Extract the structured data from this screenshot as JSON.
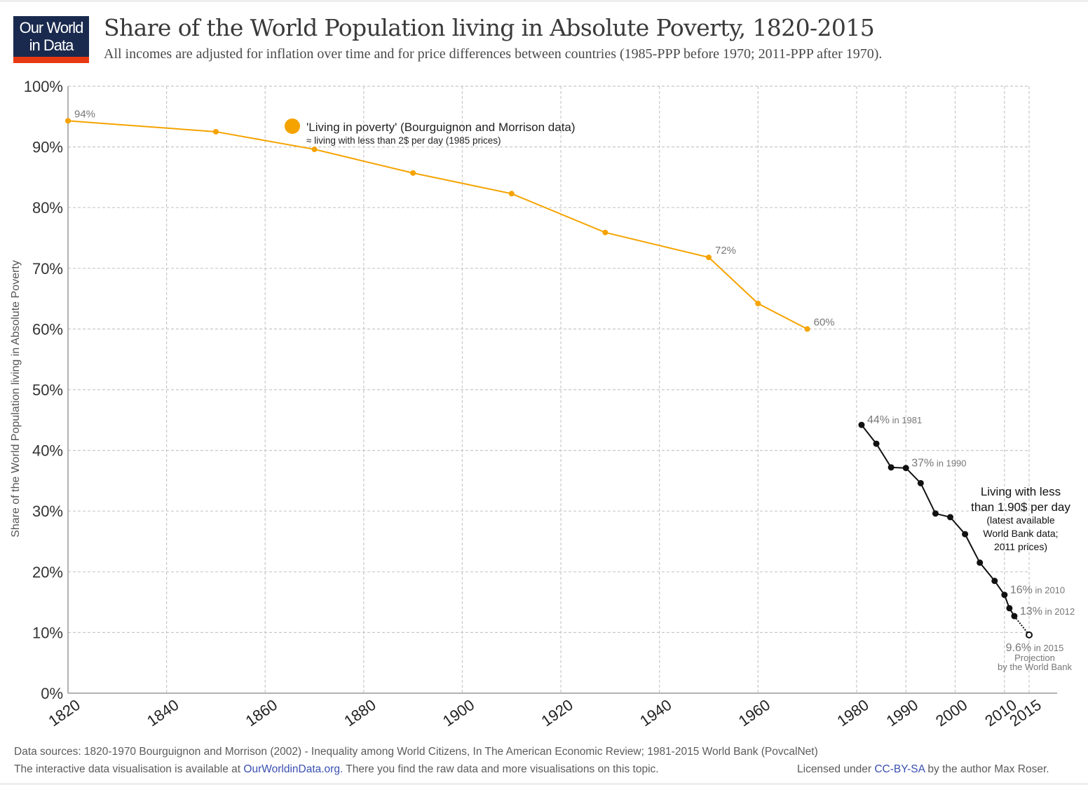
{
  "logo": {
    "line1": "Our World",
    "line2": "in Data"
  },
  "colors": {
    "logo_bg": "#1a2a4e",
    "logo_strip": "#e63912",
    "poverty_orange": "#f5a300",
    "worldbank_black": "#111111",
    "link": "#3a4fb0"
  },
  "chart_data": {
    "type": "line",
    "title": "Share of the World Population living in Absolute Poverty, 1820-2015",
    "subtitle": "All incomes are adjusted for inflation over time and for price differences between countries (1985-PPP before 1970; 2011-PPP after 1970).",
    "xlabel": "",
    "ylabel": "Share of the World Population living in Absolute Poverty",
    "xlim": [
      1820,
      2015
    ],
    "ylim": [
      0,
      100
    ],
    "grid": true,
    "x_ticks": [
      1820,
      1840,
      1860,
      1880,
      1900,
      1920,
      1940,
      1960,
      1980,
      1990,
      2000,
      2010,
      2015
    ],
    "x_tick_labels": [
      "1820",
      "1840",
      "1860",
      "1880",
      "1900",
      "1920",
      "1940",
      "1960",
      "1980",
      "1990",
      "2000",
      "2010",
      "2015"
    ],
    "y_ticks": [
      0,
      10,
      20,
      30,
      40,
      50,
      60,
      70,
      80,
      90,
      100
    ],
    "y_tick_labels": [
      "0%",
      "10%",
      "20%",
      "30%",
      "40%",
      "50%",
      "60%",
      "70%",
      "80%",
      "90%",
      "100%"
    ],
    "series": [
      {
        "name": "'Living in poverty' (Bourguignon and Morrison data)",
        "note": "≈ living with less than 2$ per day (1985 prices)",
        "color": "#f5a300",
        "x": [
          1820,
          1850,
          1870,
          1890,
          1910,
          1929,
          1950,
          1960,
          1970
        ],
        "y": [
          94.3,
          92.5,
          89.6,
          85.7,
          82.3,
          75.9,
          71.8,
          64.2,
          60.0
        ],
        "labels": [
          {
            "x": 1820,
            "y": 94.3,
            "text": "94%"
          },
          {
            "x": 1950,
            "y": 71.8,
            "text": "72%"
          },
          {
            "x": 1970,
            "y": 60.0,
            "text": "60%"
          }
        ]
      },
      {
        "name": "Living with less than 1.90$ per day",
        "note_lines": [
          "Living with less",
          "than 1.90$ per day",
          "(latest available",
          "World Bank data;",
          "2011 prices)"
        ],
        "color": "#111111",
        "x": [
          1981,
          1984,
          1987,
          1990,
          1993,
          1996,
          1999,
          2002,
          2005,
          2008,
          2010,
          2011,
          2012
        ],
        "y": [
          44.2,
          41.1,
          37.2,
          37.1,
          34.6,
          29.6,
          29.0,
          26.2,
          21.5,
          18.5,
          16.2,
          14.0,
          12.7
        ],
        "labels": [
          {
            "x": 1981,
            "y": 44.2,
            "pct": "44%",
            "suffix": " in 1981"
          },
          {
            "x": 1990,
            "y": 37.1,
            "pct": "37%",
            "suffix": " in 1990"
          },
          {
            "x": 2010,
            "y": 16.2,
            "pct": "16%",
            "suffix": " in 2010"
          },
          {
            "x": 2012,
            "y": 12.7,
            "pct": "13%",
            "suffix": " in 2012"
          }
        ]
      },
      {
        "name": "Projection by the World Bank",
        "color": "#111111",
        "style": "dotted",
        "x": [
          2012,
          2015
        ],
        "y": [
          12.7,
          9.6
        ],
        "labels": [
          {
            "x": 2015,
            "y": 9.6,
            "pct": "9.6%",
            "suffix": " in 2015",
            "lines": [
              "Projection",
              "by the World Bank"
            ]
          }
        ]
      }
    ],
    "legend": {
      "placement": "top-center",
      "entries": [
        "'Living in poverty' (Bourguignon and Morrison data)"
      ],
      "sublabel": "≈ living with less than 2$ per day (1985 prices)"
    }
  },
  "footer": {
    "sources": "Data sources: 1820-1970 Bourguignon and Morrison (2002) - Inequality among World Citizens, In The American Economic Review; 1981-2015 World Bank (PovcalNet)",
    "interactive_prefix": "The interactive data visualisation is available at ",
    "interactive_link": "OurWorldinData.org.",
    "interactive_suffix": " There you find the raw data and more visualisations on this topic.",
    "license_prefix": "Licensed under ",
    "license_link": "CC-BY-SA",
    "license_suffix": " by the author Max Roser."
  }
}
